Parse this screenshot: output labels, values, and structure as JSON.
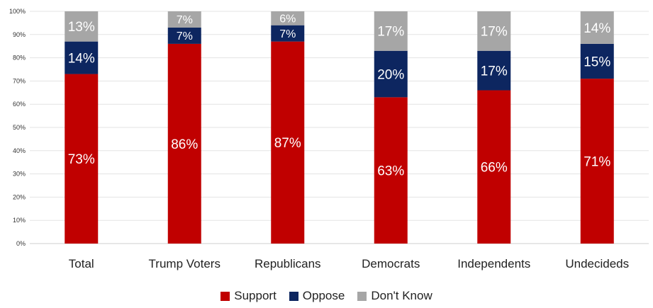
{
  "chart_data": {
    "type": "bar",
    "stacked": true,
    "categories": [
      "Total",
      "Trump Voters",
      "Republicans",
      "Democrats",
      "Independents",
      "Undecideds"
    ],
    "series": [
      {
        "name": "Support",
        "color": "#c00000",
        "values": [
          73,
          86,
          87,
          63,
          66,
          71
        ],
        "labels": [
          "73%",
          "86%",
          "87%",
          "63%",
          "66%",
          "71%"
        ]
      },
      {
        "name": "Oppose",
        "color": "#0d2660",
        "values": [
          14,
          7,
          7,
          20,
          17,
          15
        ],
        "labels": [
          "14%",
          "7%",
          "7%",
          "20%",
          "17%",
          "15%"
        ]
      },
      {
        "name": "Don't Know",
        "color": "#a6a6a6",
        "values": [
          13,
          7,
          6,
          17,
          17,
          14
        ],
        "labels": [
          "13%",
          "7%",
          "6%",
          "17%",
          "17%",
          "14%"
        ]
      }
    ],
    "y_ticks": [
      "0%",
      "10%",
      "20%",
      "30%",
      "40%",
      "50%",
      "60%",
      "70%",
      "80%",
      "90%",
      "100%"
    ],
    "ylim": [
      0,
      100
    ],
    "grid": true,
    "legend_position": "bottom"
  }
}
